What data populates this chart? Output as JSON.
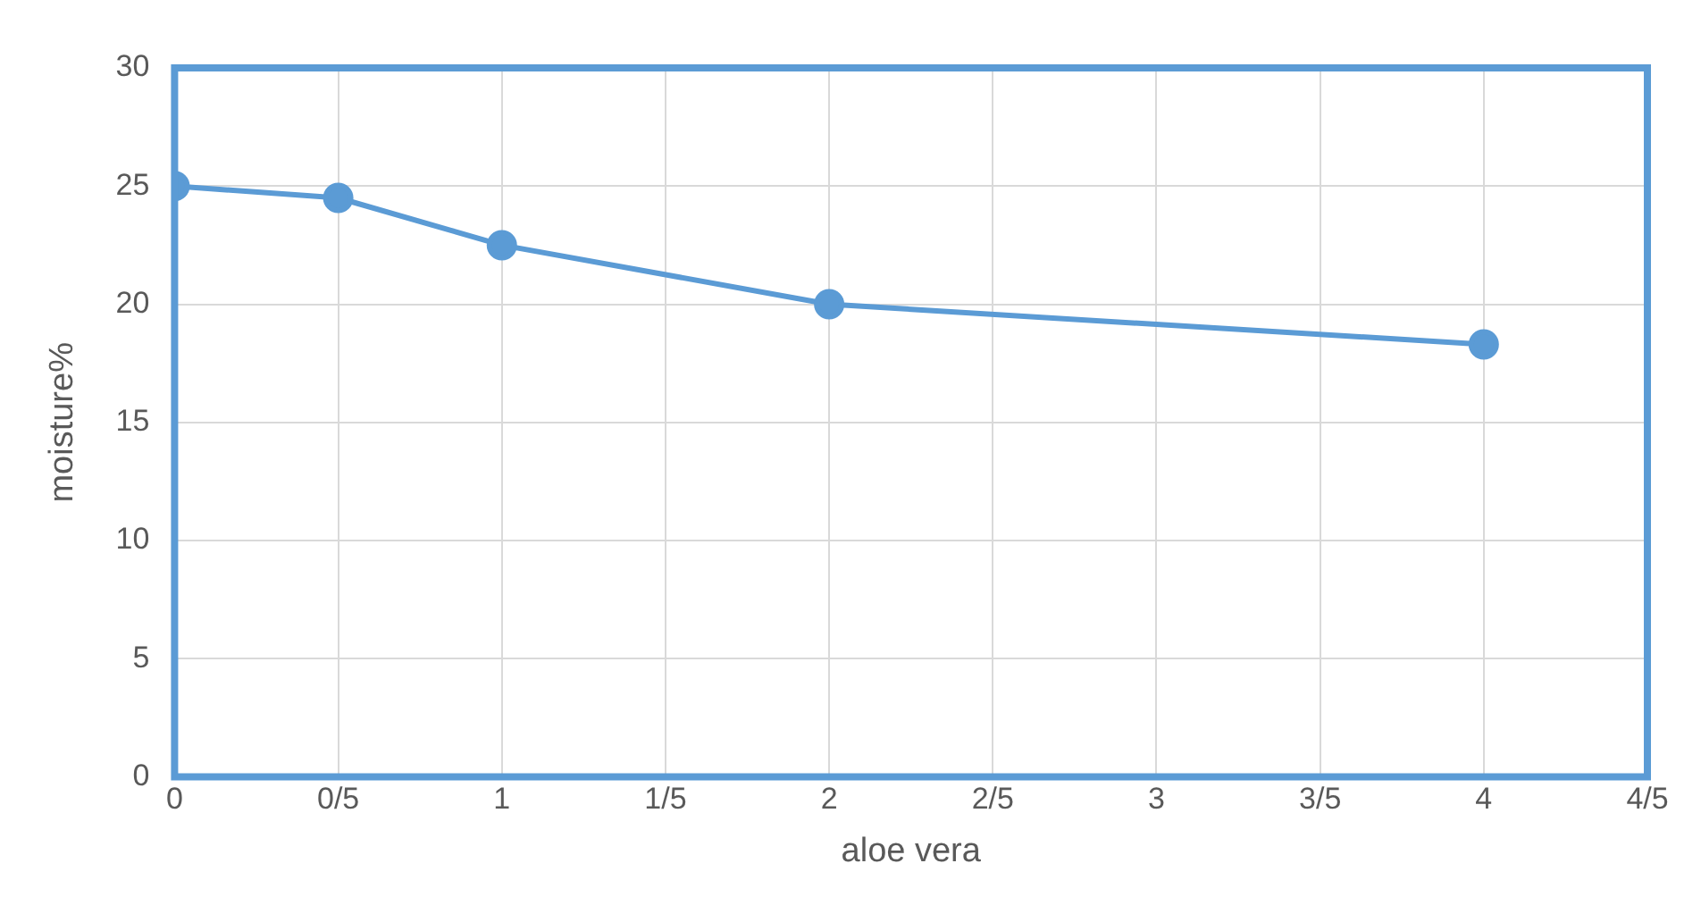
{
  "chart_data": {
    "type": "line",
    "xlabel": "aloe vera",
    "ylabel": "moisture%",
    "categories": [
      "0",
      "0/5",
      "1",
      "1/5",
      "2",
      "2/5",
      "3",
      "3/5",
      "4",
      "4/5"
    ],
    "series": [
      {
        "color": "#5b9bd5",
        "values": [
          25,
          24.5,
          22.5,
          null,
          20,
          null,
          null,
          null,
          18.3,
          null
        ]
      }
    ],
    "ylim": [
      0,
      30
    ],
    "yticks": [
      0,
      5,
      10,
      15,
      20,
      25,
      30
    ],
    "grid": true,
    "legend": false,
    "marker": "circle",
    "line_style": "solid"
  }
}
